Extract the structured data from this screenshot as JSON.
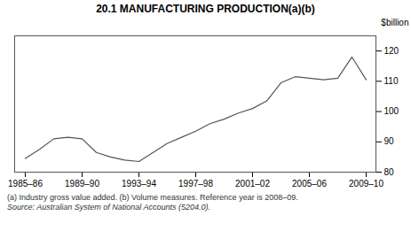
{
  "chart_data": {
    "type": "line",
    "title": "20.1   MANUFACTURING PRODUCTION(a)(b)",
    "y_label": "$billion",
    "categories": [
      "1985–86",
      null,
      null,
      null,
      "1989–90",
      null,
      null,
      null,
      "1993–94",
      null,
      null,
      null,
      "1997–98",
      null,
      null,
      null,
      "2001–02",
      null,
      null,
      null,
      "2005–06",
      null,
      null,
      null,
      "2009–10"
    ],
    "values": [
      84.5,
      87.5,
      91.0,
      91.5,
      91.0,
      86.5,
      85.0,
      84.0,
      83.5,
      86.5,
      89.5,
      91.5,
      93.5,
      96.0,
      97.5,
      99.5,
      101.0,
      103.5,
      109.5,
      111.5,
      111.0,
      110.5,
      111.0,
      118.0,
      110.5
    ],
    "color": "#555555",
    "ylim": [
      80,
      125
    ],
    "yticks": [
      80,
      90,
      100,
      110,
      120
    ],
    "grid": false,
    "footnotes": [
      "(a) Industry gross value added. (b) Volume measures. Reference year is 2008–09.",
      "Source: Australian System of National Accounts (5204.0)."
    ]
  }
}
